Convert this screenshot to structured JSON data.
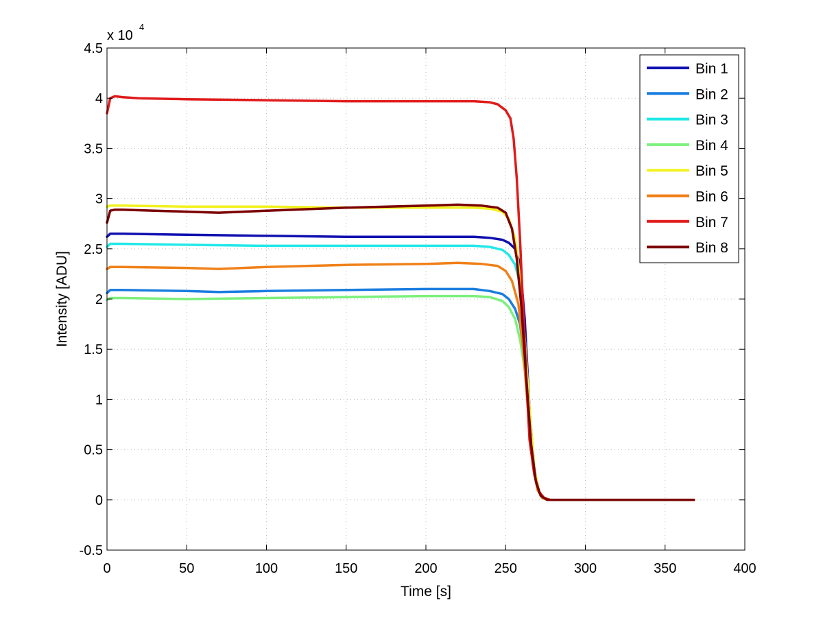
{
  "chart_data": {
    "type": "line",
    "xlabel": "Time [s]",
    "ylabel": "Intensity [ADU]",
    "y_multiplier": "x 10",
    "y_multiplier_exponent": "4",
    "xlim": [
      0,
      400
    ],
    "ylim": [
      -0.5,
      4.5
    ],
    "xticks": [
      0,
      50,
      100,
      150,
      200,
      250,
      300,
      350,
      400
    ],
    "yticks": [
      -0.5,
      0,
      0.5,
      1,
      1.5,
      2,
      2.5,
      3,
      3.5,
      4,
      4.5
    ],
    "xtick_labels": [
      "0",
      "50",
      "100",
      "150",
      "200",
      "250",
      "300",
      "350",
      "400"
    ],
    "ytick_labels": [
      "-0.5",
      "0",
      "0.5",
      "1",
      "1.5",
      "2",
      "2.5",
      "3",
      "3.5",
      "4",
      "4.5"
    ],
    "grid": true,
    "legend_position": "top-right",
    "series": [
      {
        "name": "Bin 1",
        "color": "#1010b0",
        "x": [
          0,
          2,
          10,
          50,
          100,
          150,
          200,
          230,
          240,
          248,
          252,
          256,
          259,
          262,
          265,
          268,
          271,
          274,
          278,
          290,
          368
        ],
        "y": [
          2.62,
          2.65,
          2.65,
          2.64,
          2.63,
          2.62,
          2.62,
          2.62,
          2.61,
          2.59,
          2.56,
          2.5,
          2.35,
          1.8,
          0.9,
          0.3,
          0.08,
          0.02,
          0.0,
          0.0,
          0.0
        ]
      },
      {
        "name": "Bin 2",
        "color": "#1a7de0",
        "x": [
          0,
          2,
          10,
          50,
          70,
          100,
          150,
          200,
          230,
          240,
          248,
          252,
          256,
          259,
          262,
          265,
          268,
          271,
          274,
          278,
          290,
          368
        ],
        "y": [
          2.06,
          2.09,
          2.09,
          2.08,
          2.07,
          2.08,
          2.09,
          2.1,
          2.1,
          2.08,
          2.05,
          2.0,
          1.9,
          1.75,
          1.4,
          0.8,
          0.3,
          0.08,
          0.02,
          0.0,
          0.0,
          0.0
        ]
      },
      {
        "name": "Bin 3",
        "color": "#22e8e8",
        "x": [
          0,
          2,
          10,
          50,
          100,
          150,
          200,
          230,
          240,
          248,
          252,
          256,
          259,
          262,
          265,
          268,
          271,
          274,
          278,
          290,
          368
        ],
        "y": [
          2.52,
          2.55,
          2.55,
          2.54,
          2.53,
          2.53,
          2.53,
          2.53,
          2.52,
          2.49,
          2.44,
          2.34,
          2.15,
          1.6,
          0.9,
          0.3,
          0.08,
          0.02,
          0.0,
          0.0,
          0.0
        ]
      },
      {
        "name": "Bin 4",
        "color": "#7cf07c",
        "x": [
          0,
          2,
          10,
          50,
          100,
          150,
          200,
          230,
          240,
          248,
          252,
          256,
          259,
          262,
          265,
          268,
          271,
          274,
          278,
          290,
          368
        ],
        "y": [
          1.99,
          2.01,
          2.01,
          2.0,
          2.01,
          2.02,
          2.03,
          2.03,
          2.02,
          1.98,
          1.92,
          1.8,
          1.6,
          1.3,
          0.8,
          0.3,
          0.08,
          0.02,
          0.0,
          0.0,
          0.0
        ]
      },
      {
        "name": "Bin 5",
        "color": "#f2f21e",
        "x": [
          0,
          2,
          10,
          50,
          100,
          150,
          200,
          230,
          240,
          248,
          252,
          256,
          259,
          262,
          265,
          268,
          271,
          274,
          278,
          290,
          368
        ],
        "y": [
          2.92,
          2.93,
          2.93,
          2.92,
          2.92,
          2.91,
          2.91,
          2.91,
          2.9,
          2.87,
          2.8,
          2.6,
          2.2,
          1.6,
          0.9,
          0.3,
          0.08,
          0.02,
          0.0,
          0.0,
          0.0
        ]
      },
      {
        "name": "Bin 6",
        "color": "#f08018",
        "x": [
          0,
          2,
          10,
          50,
          70,
          100,
          150,
          200,
          220,
          235,
          245,
          250,
          254,
          258,
          261,
          264,
          267,
          270,
          273,
          277,
          290,
          368
        ],
        "y": [
          2.3,
          2.32,
          2.32,
          2.31,
          2.3,
          2.32,
          2.34,
          2.35,
          2.36,
          2.35,
          2.33,
          2.28,
          2.18,
          1.95,
          1.5,
          0.9,
          0.35,
          0.1,
          0.02,
          0.0,
          0.0,
          0.0
        ]
      },
      {
        "name": "Bin 7",
        "color": "#e01a1a",
        "x": [
          0,
          2,
          5,
          10,
          20,
          50,
          100,
          150,
          200,
          230,
          240,
          245,
          250,
          253,
          255,
          257,
          259,
          261,
          263,
          265,
          268,
          271,
          274,
          278,
          290,
          368
        ],
        "y": [
          3.85,
          4.0,
          4.02,
          4.01,
          4.0,
          3.99,
          3.98,
          3.97,
          3.97,
          3.97,
          3.96,
          3.94,
          3.88,
          3.8,
          3.6,
          3.2,
          2.6,
          1.9,
          1.2,
          0.6,
          0.25,
          0.08,
          0.02,
          0.0,
          0.0,
          0.0
        ]
      },
      {
        "name": "Bin 8",
        "color": "#7a0000",
        "x": [
          0,
          2,
          5,
          10,
          30,
          50,
          70,
          100,
          150,
          200,
          220,
          235,
          245,
          250,
          254,
          257,
          260,
          263,
          266,
          269,
          272,
          276,
          290,
          368
        ],
        "y": [
          2.76,
          2.88,
          2.89,
          2.89,
          2.88,
          2.87,
          2.86,
          2.88,
          2.91,
          2.93,
          2.94,
          2.93,
          2.91,
          2.86,
          2.7,
          2.4,
          1.9,
          1.2,
          0.55,
          0.18,
          0.04,
          0.0,
          0.0,
          0.0
        ]
      }
    ]
  }
}
